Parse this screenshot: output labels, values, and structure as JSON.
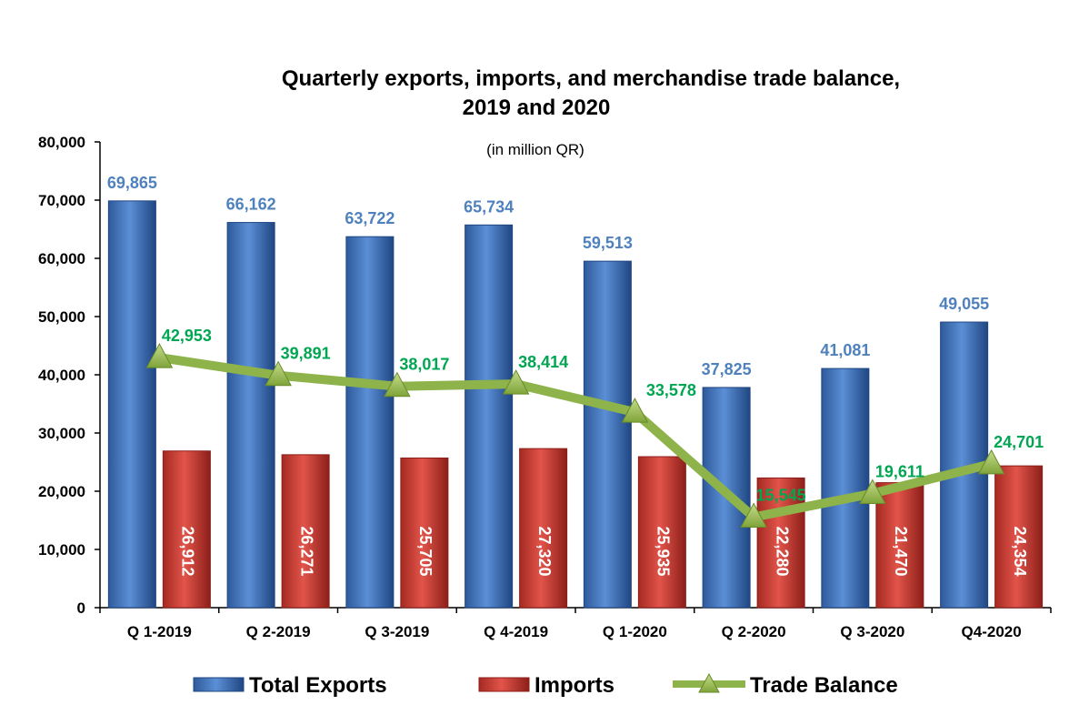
{
  "chart_data": {
    "type": "bar",
    "title": "Quarterly exports, imports, and merchandise trade balance,",
    "title_line2": "2019 and 2020",
    "subtitle": "(in million QR)",
    "categories": [
      "Q 1-2019",
      "Q 2-2019",
      "Q 3-2019",
      "Q 4-2019",
      "Q 1-2020",
      "Q 2-2020",
      "Q 3-2020",
      "Q4-2020"
    ],
    "series": [
      {
        "name": "Total Exports",
        "type": "bar",
        "color": "#4f81bd",
        "values": [
          69865,
          66162,
          63722,
          65734,
          59513,
          37825,
          41081,
          49055
        ],
        "labels": [
          "69,865",
          "66,162",
          "63,722",
          "65,734",
          "59,513",
          "37,825",
          "41,081",
          "49,055"
        ]
      },
      {
        "name": "Imports",
        "type": "bar",
        "color": "#c0392b",
        "values": [
          26912,
          26271,
          25705,
          27320,
          25935,
          22280,
          21470,
          24354
        ],
        "labels": [
          "26,912",
          "26,271",
          "25,705",
          "27,320",
          "25,935",
          "22,280",
          "21,470",
          "24,354"
        ]
      },
      {
        "name": "Trade Balance",
        "type": "line",
        "color": "#8db34a",
        "values": [
          42953,
          39891,
          38017,
          38414,
          33578,
          15545,
          19611,
          24701
        ],
        "labels": [
          "42,953",
          "39,891",
          "38,017",
          "38,414",
          "33,578",
          "15,545",
          "19,611",
          "24,701"
        ]
      }
    ],
    "ylim": [
      0,
      80000
    ],
    "yticks": [
      "0",
      "10,000",
      "20,000",
      "30,000",
      "40,000",
      "50,000",
      "60,000",
      "70,000",
      "80,000"
    ],
    "xlabel": "",
    "ylabel": "",
    "grid": false,
    "legend_position": "bottom"
  }
}
